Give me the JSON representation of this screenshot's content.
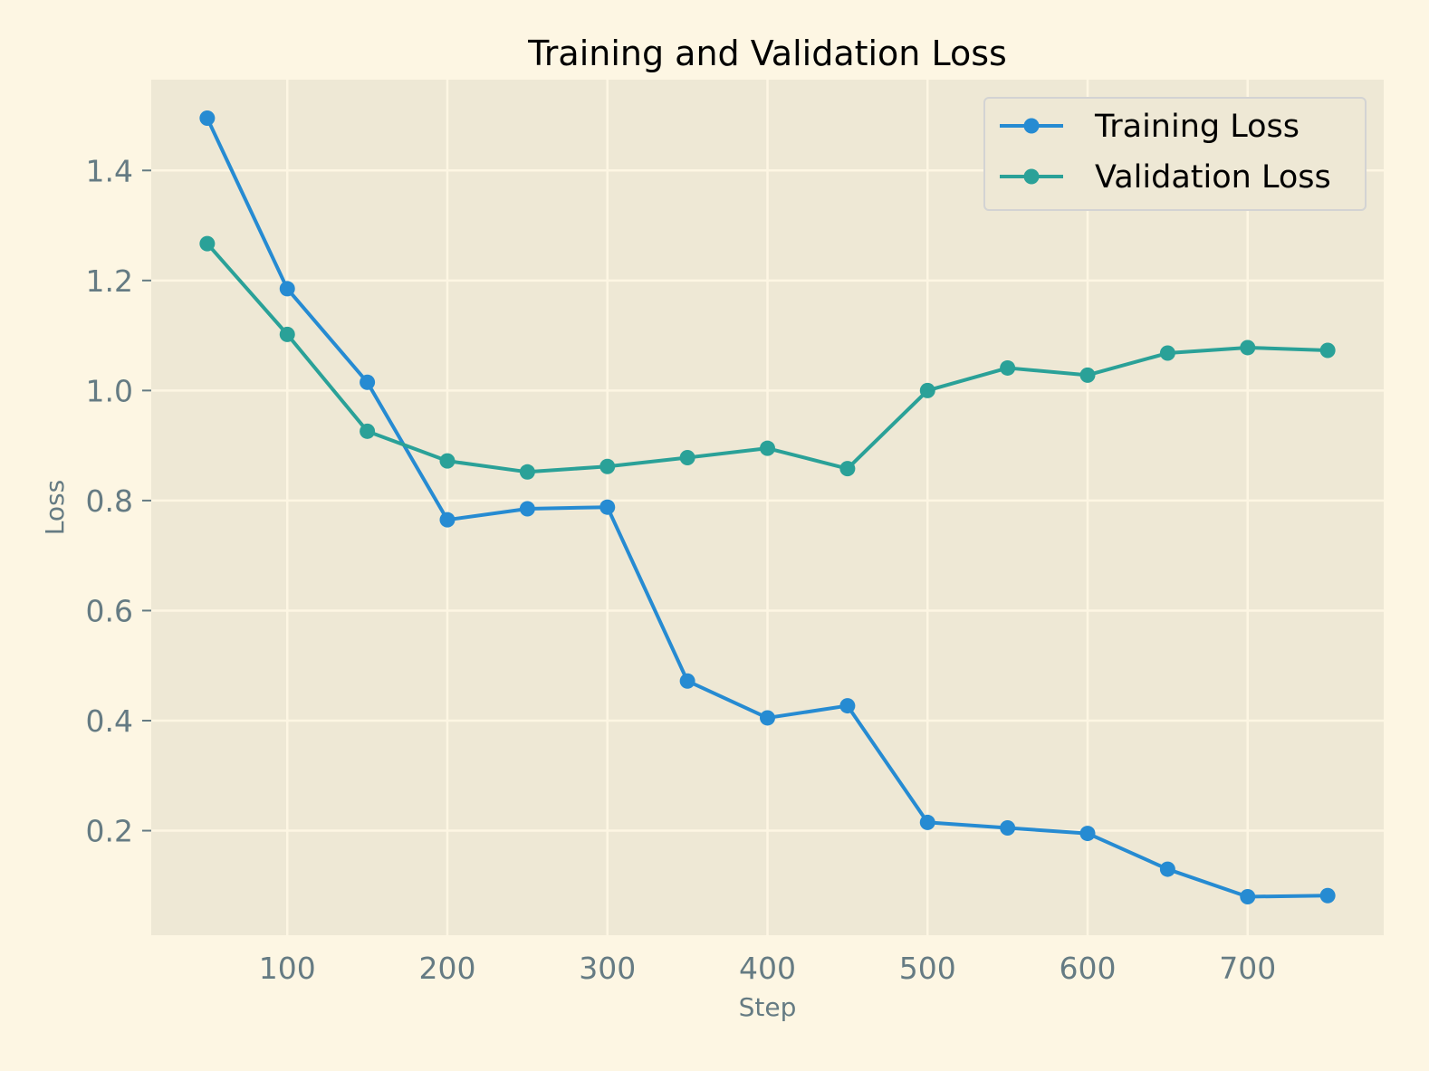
{
  "chart_data": {
    "type": "line",
    "title": "Training and Validation Loss",
    "xlabel": "Step",
    "ylabel": "Loss",
    "xlim": [
      15,
      785
    ],
    "ylim": [
      0.01,
      1.565
    ],
    "xticks": [
      100,
      200,
      300,
      400,
      500,
      600,
      700
    ],
    "xtick_labels": [
      "100",
      "200",
      "300",
      "400",
      "500",
      "600",
      "700"
    ],
    "yticks": [
      0.2,
      0.4,
      0.6,
      0.8,
      1.0,
      1.2,
      1.4
    ],
    "ytick_labels": [
      "0.2",
      "0.4",
      "0.6",
      "0.8",
      "1.0",
      "1.2",
      "1.4"
    ],
    "grid": true,
    "legend_position": "top-right",
    "x": [
      50,
      100,
      150,
      200,
      250,
      300,
      350,
      400,
      450,
      500,
      550,
      600,
      650,
      700,
      750
    ],
    "series": [
      {
        "name": "Training Loss",
        "color": "#268bd2",
        "values": [
          1.495,
          1.185,
          1.015,
          0.765,
          0.785,
          0.788,
          0.472,
          0.405,
          0.427,
          0.215,
          0.205,
          0.195,
          0.13,
          0.08,
          0.082
        ]
      },
      {
        "name": "Validation Loss",
        "color": "#2aa198",
        "values": [
          1.267,
          1.102,
          0.926,
          0.872,
          0.852,
          0.862,
          0.878,
          0.895,
          0.858,
          1.0,
          1.041,
          1.028,
          1.068,
          1.078,
          1.073
        ]
      }
    ],
    "colors": {
      "background": "#fdf6e3",
      "plot_area": "#eee8d5",
      "grid": "#fdf6e3",
      "tick_text": "#657b83",
      "legend_border": "#d3d3d3"
    }
  }
}
